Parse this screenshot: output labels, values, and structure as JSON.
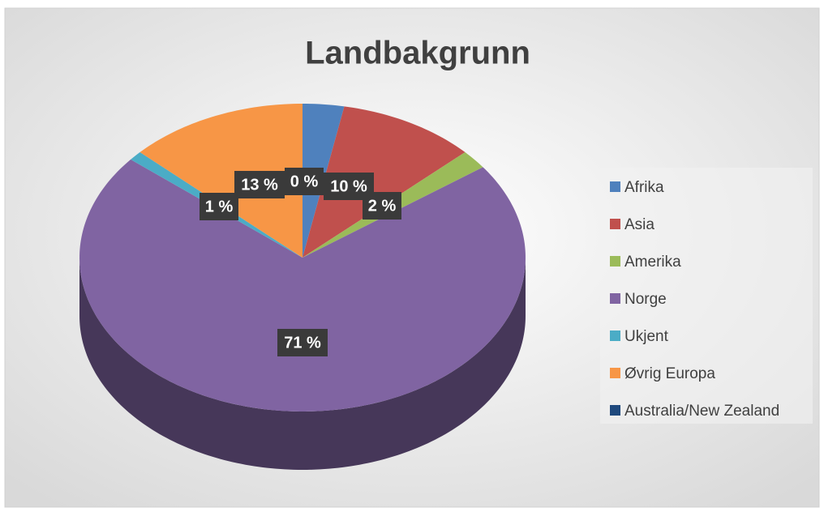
{
  "chart_data": {
    "type": "pie",
    "title": "Landbakgrunn",
    "categories": [
      "Afrika",
      "Asia",
      "Amerika",
      "Norge",
      "Ukjent",
      "Øvrig Europa",
      "Australia/New Zealand"
    ],
    "values": [
      3,
      10,
      2,
      71,
      1,
      13,
      0
    ],
    "value_labels": [
      null,
      "10 %",
      "2 %",
      "71 %",
      "1 %",
      "13 %",
      "0 %"
    ],
    "colors": [
      "#4f81bd",
      "#c0504d",
      "#9bbb59",
      "#8064a2",
      "#4bacc6",
      "#f79646",
      "#1f497d"
    ],
    "legend": "right"
  }
}
